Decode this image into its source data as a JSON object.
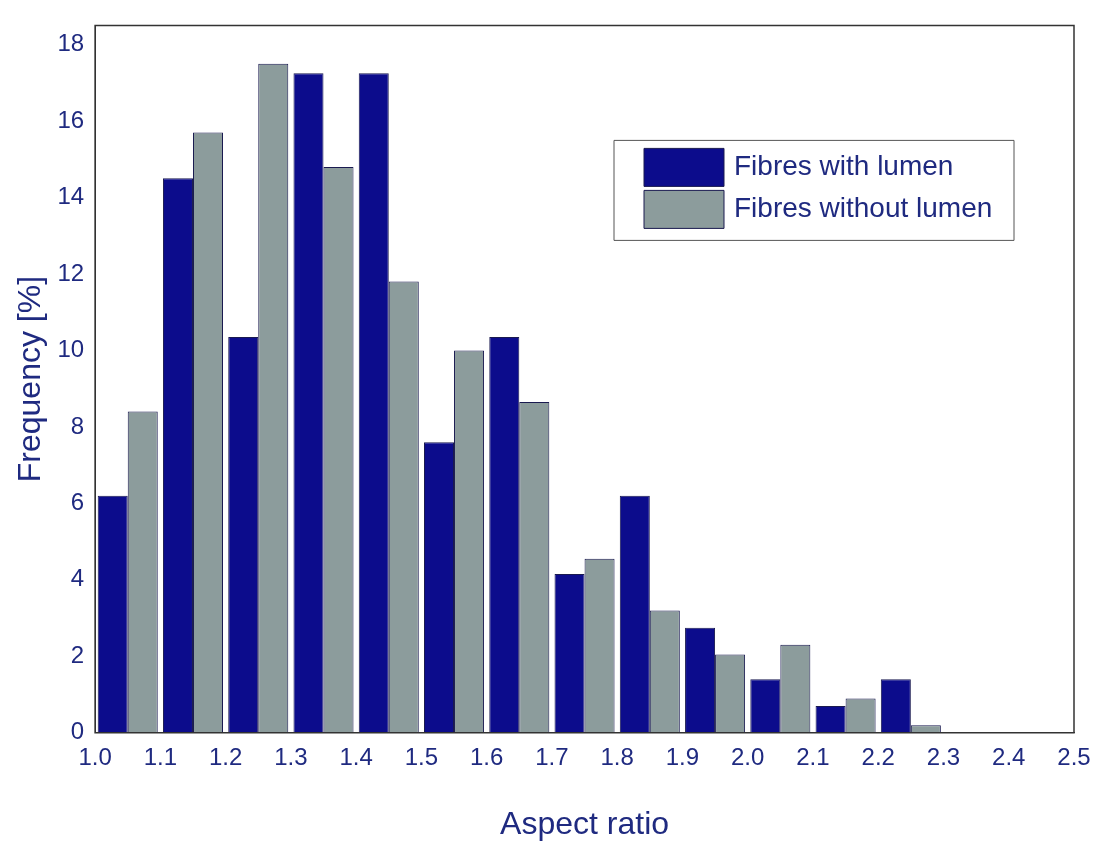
{
  "chart_data": {
    "type": "histogram",
    "xlabel": "Aspect ratio",
    "ylabel": "Frequency [%]",
    "bins": [
      1.0,
      1.1,
      1.2,
      1.3,
      1.4,
      1.5,
      1.6,
      1.7,
      1.8,
      1.9,
      2.0,
      2.1,
      2.2,
      2.3,
      2.4,
      2.5
    ],
    "series": [
      {
        "name": "Fibres with lumen",
        "color": "#0c0c8c",
        "values": [
          6.2,
          14.5,
          10.35,
          17.25,
          17.25,
          7.6,
          10.35,
          4.15,
          6.2,
          2.75,
          1.4,
          0.7,
          1.4,
          0,
          0
        ]
      },
      {
        "name": "Fibres without lumen",
        "color": "#8c9c9c",
        "values": [
          8.4,
          15.7,
          17.5,
          14.8,
          11.8,
          10,
          8.65,
          4.55,
          3.2,
          2.05,
          2.3,
          0.9,
          0.2,
          0,
          0
        ]
      }
    ],
    "xlim": [
      1.0,
      2.5
    ],
    "xticks": [
      {
        "value": 1,
        "label": "1.0"
      },
      1.1,
      1.2,
      1.3,
      1.4,
      1.5,
      1.6,
      1.7,
      1.8,
      1.9,
      {
        "value": 2,
        "label": "2.0"
      },
      2.1,
      2.2,
      2.3,
      2.4,
      2.5
    ],
    "ylim": [
      0,
      18.5
    ],
    "yticks": [
      0,
      2,
      4,
      6,
      8,
      10,
      12,
      14,
      16,
      18
    ],
    "grid": false,
    "legend": "top right"
  }
}
